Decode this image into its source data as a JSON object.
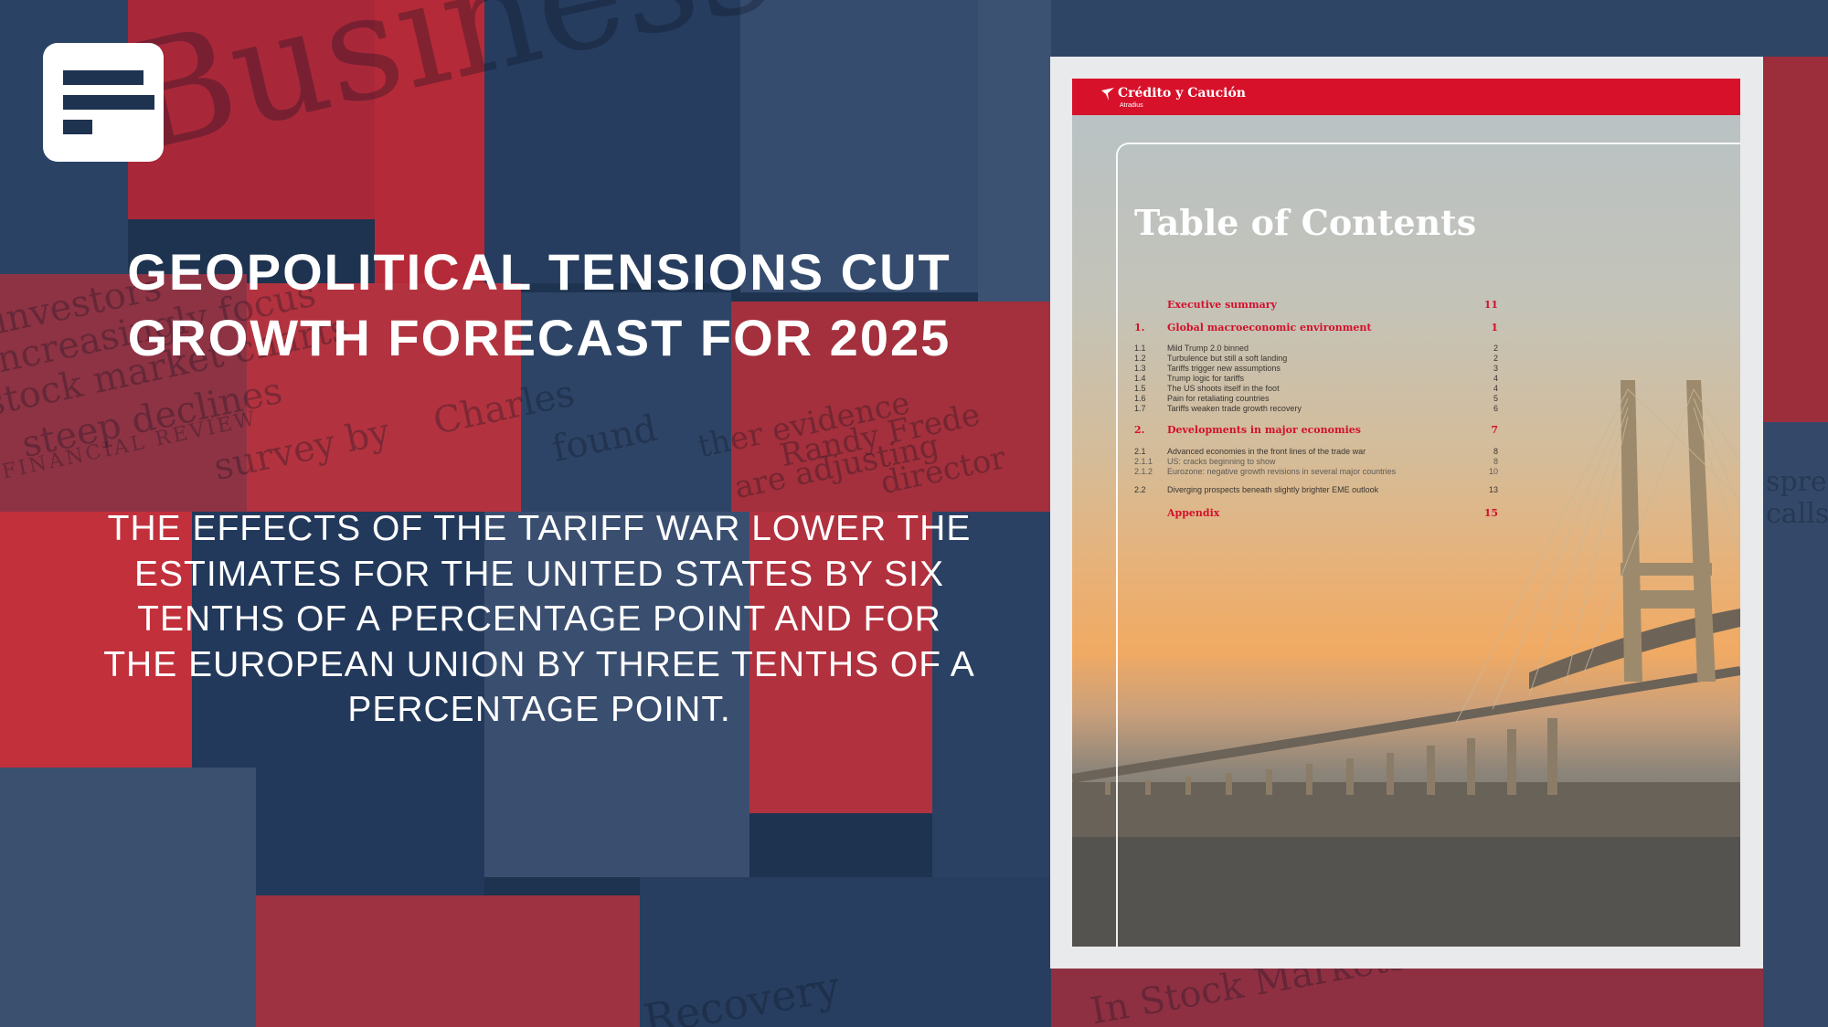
{
  "background": {
    "words": [
      "Business Review",
      "investors",
      "increasingly focus",
      "stock market charts",
      "steep declines",
      "survey by",
      "Charles",
      "found",
      "ther evidence",
      "are adjusting",
      "Randy Frede",
      "director",
      "FINANCIAL REVIEW",
      "Recovery",
      "In Stock Markets",
      "spread",
      "calls"
    ]
  },
  "logo": {
    "icon": "document-lines-icon"
  },
  "headline": "GEOPOLITICAL TENSIONS CUT GROWTH FORECAST FOR 2025",
  "subhead": "THE EFFECTS OF THE TARIFF WAR LOWER THE ESTIMATES FOR THE UNITED STATES BY SIX TENTHS OF A PERCENTAGE POINT AND FOR THE EUROPEAN UNION BY THREE TENTHS OF A PERCENTAGE POINT.",
  "document": {
    "brand": "Crédito y Caución",
    "brand_sub": "Atradius",
    "brand_color": "#d8112a",
    "title": "Table of Contents",
    "toc": [
      {
        "num": "",
        "label": "Executive summary",
        "page": "11",
        "level": "major"
      },
      {
        "num": "1.",
        "label": "Global macroeconomic environment",
        "page": "1",
        "level": "major"
      },
      {
        "num": "1.1",
        "label": "Mild Trump 2.0 binned",
        "page": "2",
        "level": "minor"
      },
      {
        "num": "1.2",
        "label": "Turbulence but still a soft landing",
        "page": "2",
        "level": "minor"
      },
      {
        "num": "1.3",
        "label": "Tariffs trigger new assumptions",
        "page": "3",
        "level": "minor"
      },
      {
        "num": "1.4",
        "label": "Trump logic for tariffs",
        "page": "4",
        "level": "minor"
      },
      {
        "num": "1.5",
        "label": "The US shoots itself in the foot",
        "page": "4",
        "level": "minor"
      },
      {
        "num": "1.6",
        "label": "Pain for retaliating countries",
        "page": "5",
        "level": "minor"
      },
      {
        "num": "1.7",
        "label": "Tariffs weaken trade growth recovery",
        "page": "6",
        "level": "minor"
      },
      {
        "num": "2.",
        "label": "Developments in major economies",
        "page": "7",
        "level": "major"
      },
      {
        "num": "2.1",
        "label": "Advanced economies in the front lines of the trade war",
        "page": "8",
        "level": "minor"
      },
      {
        "num": "2.1.1",
        "label": "US: cracks beginning to show",
        "page": "8",
        "level": "faint"
      },
      {
        "num": "2.1.2",
        "label": "Eurozone: negative growth revisions in several major countries",
        "page": "10",
        "level": "faint"
      },
      {
        "num": "2.2",
        "label": "Diverging prospects beneath slightly brighter EME outlook",
        "page": "13",
        "level": "minor"
      },
      {
        "num": "",
        "label": "Appendix",
        "page": "15",
        "level": "major"
      }
    ]
  }
}
